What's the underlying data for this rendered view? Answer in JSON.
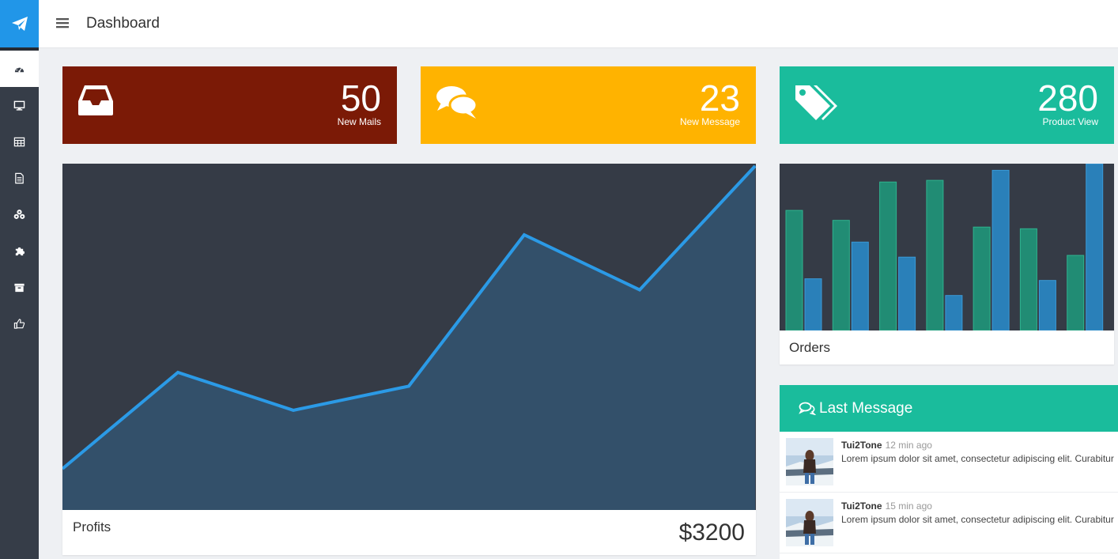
{
  "header": {
    "title": "Dashboard"
  },
  "sidebar": {
    "logo_icon": "paper-plane-icon",
    "items": [
      {
        "icon": "dashboard-icon",
        "active": true
      },
      {
        "icon": "desktop-icon",
        "active": false
      },
      {
        "icon": "table-icon",
        "active": false
      },
      {
        "icon": "document-icon",
        "active": false
      },
      {
        "icon": "cubes-icon",
        "active": false
      },
      {
        "icon": "puzzle-icon",
        "active": false
      },
      {
        "icon": "archive-icon",
        "active": false
      },
      {
        "icon": "thumbs-up-icon",
        "active": false
      }
    ]
  },
  "tiles": [
    {
      "value": "50",
      "label": "New Mails",
      "icon": "inbox-icon",
      "color": "#7b1a06"
    },
    {
      "value": "23",
      "label": "New Message",
      "icon": "comments-icon",
      "color": "#ffb300"
    },
    {
      "value": "280",
      "label": "Product View",
      "icon": "tags-icon",
      "color": "#1abc9c"
    }
  ],
  "profits": {
    "label": "Profits",
    "value": "$3200"
  },
  "orders": {
    "label": "Orders"
  },
  "last_message": {
    "title": "Last Message",
    "messages": [
      {
        "author": "Tui2Tone",
        "time": "12 min ago",
        "text": "Lorem ipsum dolor sit amet, consectetur adipiscing elit. Curabitur"
      },
      {
        "author": "Tui2Tone",
        "time": "15 min ago",
        "text": "Lorem ipsum dolor sit amet, consectetur adipiscing elit. Curabitur"
      }
    ]
  },
  "chart_data": [
    {
      "type": "area",
      "x": [
        1,
        2,
        3,
        4,
        5,
        6,
        7
      ],
      "series": [
        {
          "values": [
            12,
            40,
            29,
            36,
            80,
            64,
            100
          ]
        }
      ],
      "ylim": [
        0,
        100
      ],
      "colors": {
        "line": "#2b9ae6",
        "fill": "#33506a",
        "background": "#353b46"
      }
    },
    {
      "type": "bar",
      "x": [
        1,
        2,
        3,
        4,
        5,
        6,
        7
      ],
      "series": [
        {
          "values": [
            72,
            66,
            89,
            90,
            62,
            61,
            45
          ],
          "color": "#218c74"
        },
        {
          "values": [
            31,
            53,
            44,
            21,
            96,
            30,
            100
          ],
          "color": "#2a80b9"
        }
      ],
      "ylim": [
        0,
        100
      ],
      "colors": {
        "background": "#353b46"
      }
    }
  ]
}
